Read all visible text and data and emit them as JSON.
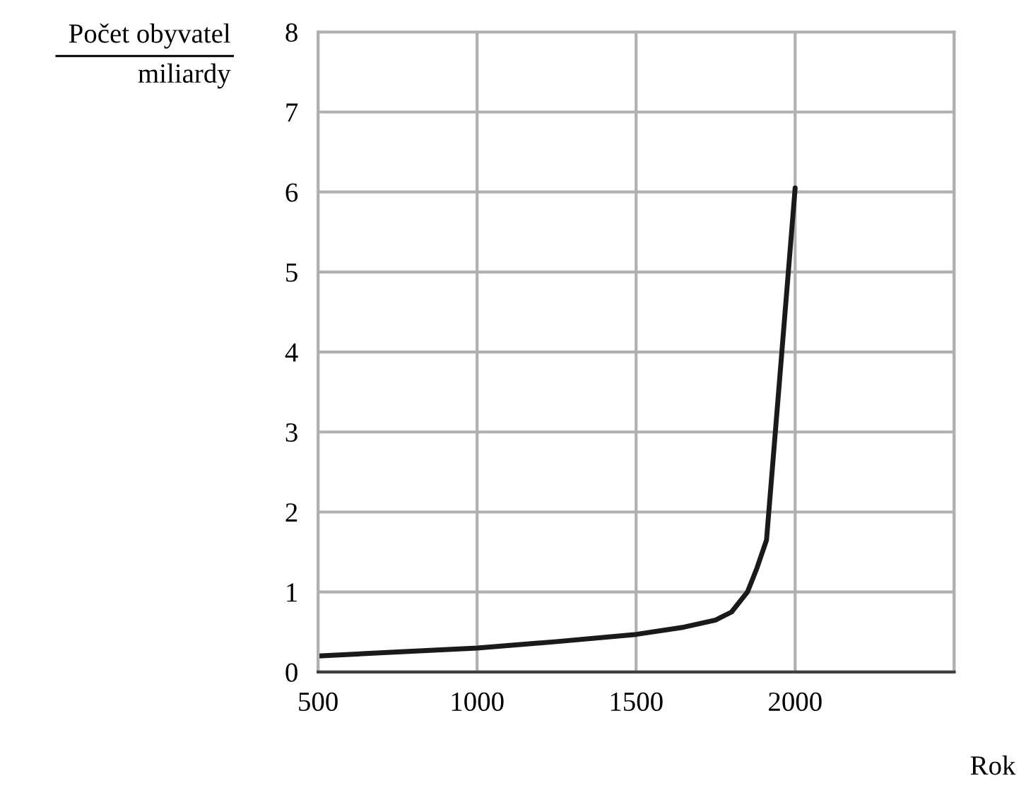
{
  "chart_data": {
    "type": "line",
    "ylabel": "Počet obyvatel",
    "xlabel": "Rok",
    "annotations": [
      "miliardy"
    ],
    "x": [
      500,
      750,
      1000,
      1250,
      1500,
      1650,
      1750,
      1800,
      1850,
      1880,
      1910,
      1950,
      2000
    ],
    "series": [
      {
        "color": "#1a1a1a",
        "values": [
          0.2,
          0.25,
          0.3,
          0.38,
          0.47,
          0.56,
          0.65,
          0.75,
          1.0,
          1.3,
          1.65,
          3.6,
          6.05
        ]
      }
    ],
    "xlim": [
      500,
      2500
    ],
    "xticks": [
      500,
      1000,
      1500,
      2000,
      {
        "value": 2500,
        "label": null
      }
    ],
    "ylim": [
      0,
      8
    ],
    "yticks": [
      0,
      1,
      2,
      3,
      4,
      5,
      6,
      7,
      8
    ],
    "grid": true,
    "marker": "none",
    "line_style": "solid"
  }
}
